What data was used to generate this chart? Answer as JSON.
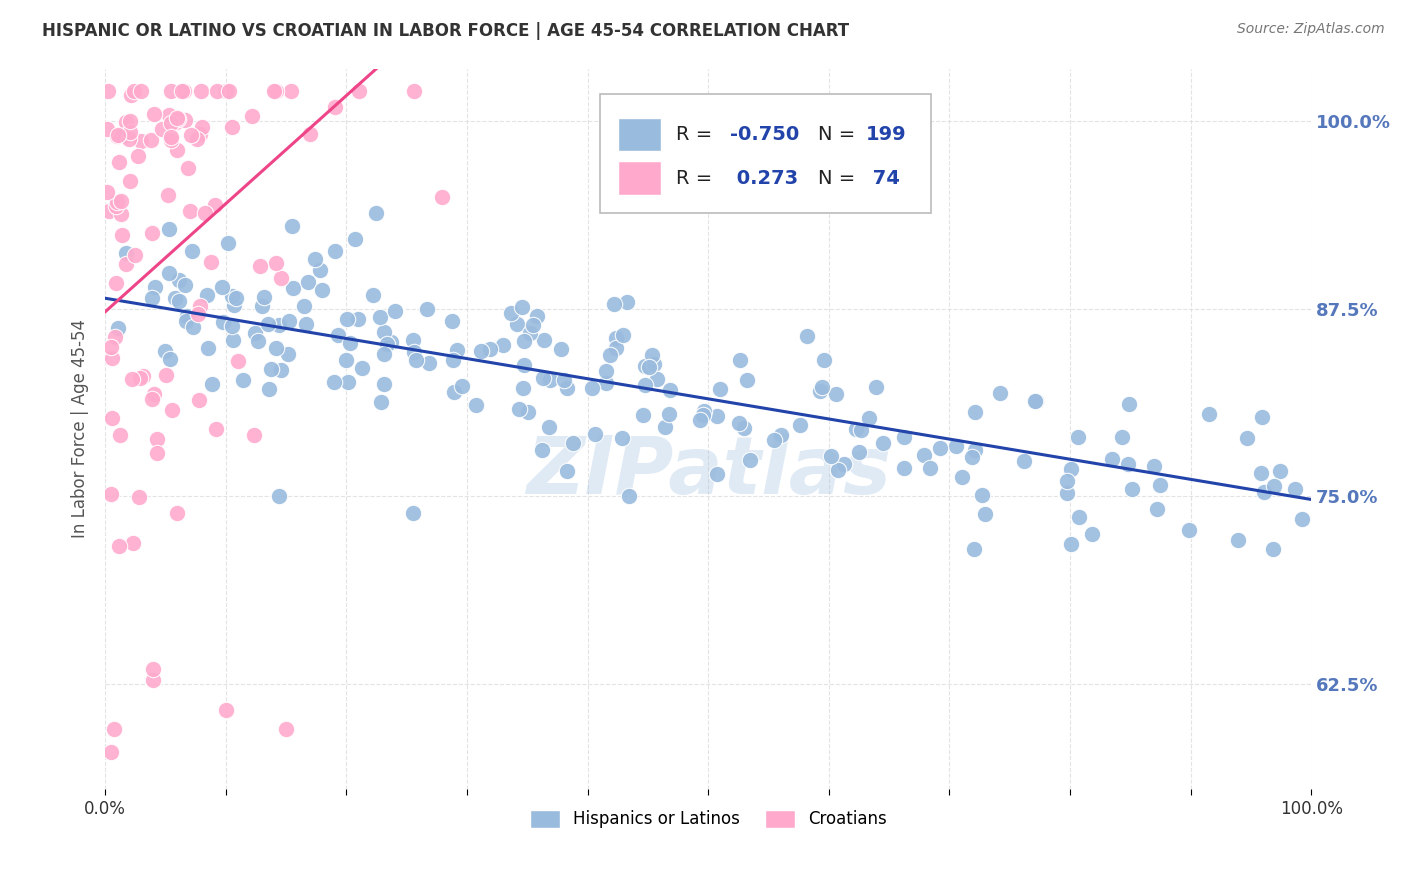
{
  "title": "HISPANIC OR LATINO VS CROATIAN IN LABOR FORCE | AGE 45-54 CORRELATION CHART",
  "source": "Source: ZipAtlas.com",
  "ylabel": "In Labor Force | Age 45-54",
  "xlim": [
    0.0,
    1.0
  ],
  "ylim": [
    0.555,
    1.035
  ],
  "yticks": [
    0.625,
    0.75,
    0.875,
    1.0
  ],
  "ytick_labels": [
    "62.5%",
    "75.0%",
    "87.5%",
    "100.0%"
  ],
  "watermark": "ZIPatlas",
  "blue_color": "#99BBDD",
  "pink_color": "#FFAACC",
  "blue_line_color": "#2244AA",
  "pink_line_color": "#EE4488",
  "legend_blue_label": "Hispanics or Latinos",
  "legend_pink_label": "Croatians",
  "R_blue": -0.75,
  "N_blue": 199,
  "R_pink": 0.273,
  "N_pink": 74,
  "title_color": "#333333",
  "axis_label_color": "#555555",
  "tick_color": "#5577BB",
  "grid_color": "#DDDDDD",
  "background_color": "#FFFFFF",
  "blue_line_start_y": 0.882,
  "blue_line_end_y": 0.748,
  "pink_line_start_y": 0.873,
  "pink_line_slope": 0.72,
  "pink_line_x_end": 0.38
}
